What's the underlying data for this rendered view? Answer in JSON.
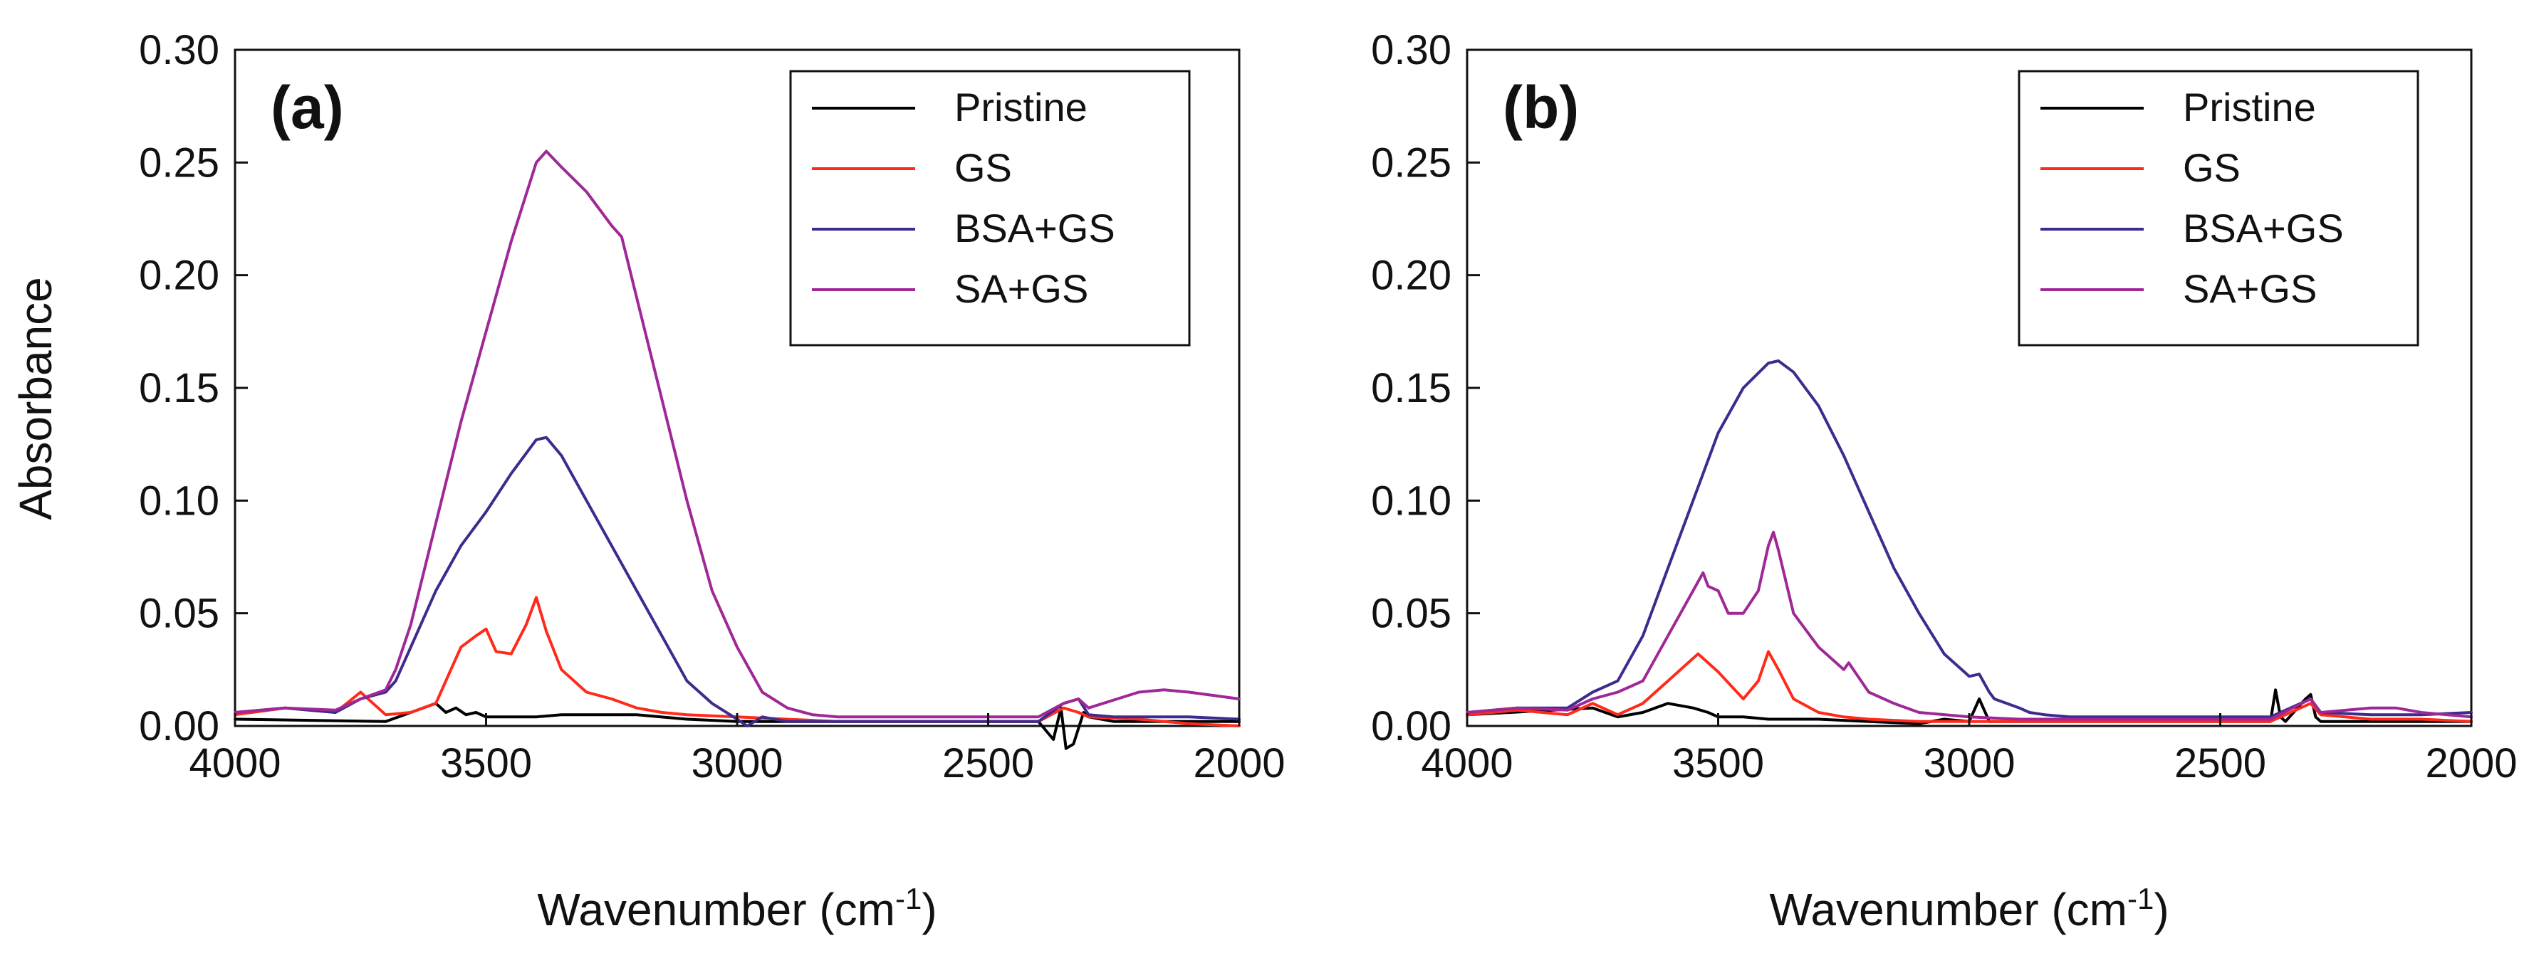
{
  "chart_data": [
    {
      "type": "line",
      "panel_label": "(a)",
      "xlabel": "Wavenumber (cm",
      "xlabel_sup": "-1",
      "xlabel_end": ")",
      "ylabel": "Absorbance",
      "xlim": [
        4000,
        2000
      ],
      "ylim": [
        0.0,
        0.3
      ],
      "xticks": [
        "4000",
        "3500",
        "3000",
        "2500",
        "2000"
      ],
      "yticks": [
        "0.00",
        "0.05",
        "0.10",
        "0.15",
        "0.20",
        "0.25",
        "0.30"
      ],
      "legend_position": "top-right",
      "series": [
        {
          "name": "Pristine",
          "color": "#000000",
          "x": [
            4000,
            3700,
            3650,
            3600,
            3580,
            3560,
            3540,
            3520,
            3500,
            3450,
            3400,
            3350,
            3300,
            3200,
            3100,
            3000,
            2900,
            2800,
            2600,
            2400,
            2370,
            2355,
            2345,
            2330,
            2310,
            2300,
            2250,
            2200,
            2100,
            2000
          ],
          "y": [
            0.003,
            0.002,
            0.006,
            0.01,
            0.006,
            0.008,
            0.005,
            0.006,
            0.004,
            0.004,
            0.004,
            0.005,
            0.005,
            0.005,
            0.003,
            0.002,
            0.002,
            0.002,
            0.002,
            0.002,
            -0.006,
            0.008,
            -0.01,
            -0.008,
            0.006,
            0.004,
            0.002,
            0.002,
            0.002,
            0.002
          ]
        },
        {
          "name": "GS",
          "color": "#ff2a1a",
          "x": [
            4000,
            3900,
            3800,
            3750,
            3700,
            3650,
            3600,
            3570,
            3550,
            3520,
            3500,
            3480,
            3450,
            3420,
            3400,
            3380,
            3350,
            3300,
            3250,
            3200,
            3150,
            3100,
            3000,
            2900,
            2800,
            2600,
            2400,
            2350,
            2320,
            2300,
            2200,
            2100,
            2000
          ],
          "y": [
            0.005,
            0.008,
            0.006,
            0.015,
            0.005,
            0.006,
            0.01,
            0.025,
            0.035,
            0.04,
            0.043,
            0.033,
            0.032,
            0.045,
            0.057,
            0.042,
            0.025,
            0.015,
            0.012,
            0.008,
            0.006,
            0.005,
            0.004,
            0.003,
            0.002,
            0.002,
            0.002,
            0.008,
            0.006,
            0.004,
            0.003,
            0.001,
            0.0
          ]
        },
        {
          "name": "BSA+GS",
          "color": "#3f2a8e",
          "x": [
            4000,
            3900,
            3800,
            3750,
            3700,
            3680,
            3650,
            3600,
            3550,
            3500,
            3450,
            3400,
            3380,
            3350,
            3300,
            3250,
            3200,
            3150,
            3100,
            3050,
            3000,
            2980,
            2950,
            2900,
            2800,
            2600,
            2400,
            2350,
            2320,
            2300,
            2250,
            2200,
            2100,
            2000
          ],
          "y": [
            0.006,
            0.008,
            0.006,
            0.012,
            0.015,
            0.02,
            0.035,
            0.06,
            0.08,
            0.095,
            0.112,
            0.127,
            0.128,
            0.12,
            0.1,
            0.08,
            0.06,
            0.04,
            0.02,
            0.01,
            0.003,
            0.0,
            0.004,
            0.002,
            0.002,
            0.002,
            0.002,
            0.01,
            0.012,
            0.005,
            0.004,
            0.004,
            0.004,
            0.003
          ]
        },
        {
          "name": "SA+GS",
          "color": "#a02896",
          "x": [
            4000,
            3900,
            3800,
            3750,
            3700,
            3680,
            3650,
            3600,
            3550,
            3500,
            3450,
            3400,
            3380,
            3350,
            3300,
            3250,
            3230,
            3200,
            3150,
            3100,
            3050,
            3000,
            2950,
            2900,
            2850,
            2800,
            2600,
            2400,
            2350,
            2320,
            2300,
            2200,
            2150,
            2100,
            2000
          ],
          "y": [
            0.006,
            0.008,
            0.007,
            0.012,
            0.016,
            0.025,
            0.045,
            0.09,
            0.135,
            0.175,
            0.215,
            0.25,
            0.255,
            0.248,
            0.237,
            0.222,
            0.217,
            0.19,
            0.145,
            0.1,
            0.06,
            0.035,
            0.015,
            0.008,
            0.005,
            0.004,
            0.004,
            0.004,
            0.01,
            0.012,
            0.008,
            0.015,
            0.016,
            0.015,
            0.012
          ]
        }
      ]
    },
    {
      "type": "line",
      "panel_label": "(b)",
      "xlabel": "Wavenumber (cm",
      "xlabel_sup": "-1",
      "xlabel_end": ")",
      "ylabel": "",
      "xlim": [
        4000,
        2000
      ],
      "ylim": [
        0.0,
        0.3
      ],
      "xticks": [
        "4000",
        "3500",
        "3000",
        "2500",
        "2000"
      ],
      "yticks": [
        "0.00",
        "0.05",
        "0.10",
        "0.15",
        "0.20",
        "0.25",
        "0.30"
      ],
      "legend_position": "top-right",
      "series": [
        {
          "name": "Pristine",
          "color": "#000000",
          "x": [
            4000,
            3750,
            3700,
            3650,
            3600,
            3550,
            3520,
            3500,
            3450,
            3400,
            3300,
            3200,
            3100,
            3050,
            3000,
            2980,
            2960,
            2900,
            2800,
            2600,
            2400,
            2390,
            2380,
            2370,
            2330,
            2320,
            2310,
            2300,
            2200,
            2100,
            2000
          ],
          "y": [
            0.005,
            0.008,
            0.004,
            0.006,
            0.01,
            0.008,
            0.006,
            0.004,
            0.004,
            0.003,
            0.003,
            0.002,
            0.001,
            0.003,
            0.002,
            0.012,
            0.002,
            0.002,
            0.002,
            0.002,
            0.002,
            0.016,
            0.004,
            0.002,
            0.012,
            0.014,
            0.004,
            0.002,
            0.002,
            0.002,
            0.002
          ]
        },
        {
          "name": "GS",
          "color": "#ff2a1a",
          "x": [
            4000,
            3900,
            3800,
            3750,
            3700,
            3650,
            3600,
            3560,
            3540,
            3520,
            3500,
            3450,
            3420,
            3400,
            3380,
            3350,
            3300,
            3250,
            3200,
            3100,
            3000,
            2900,
            2800,
            2600,
            2400,
            2320,
            2300,
            2200,
            2100,
            2000
          ],
          "y": [
            0.005,
            0.007,
            0.005,
            0.01,
            0.005,
            0.01,
            0.02,
            0.028,
            0.032,
            0.028,
            0.024,
            0.012,
            0.02,
            0.033,
            0.025,
            0.012,
            0.006,
            0.004,
            0.003,
            0.002,
            0.002,
            0.002,
            0.002,
            0.002,
            0.002,
            0.01,
            0.005,
            0.003,
            0.003,
            0.002
          ]
        },
        {
          "name": "BSA+GS",
          "color": "#3f2a8e",
          "x": [
            4000,
            3900,
            3800,
            3750,
            3700,
            3650,
            3600,
            3550,
            3500,
            3450,
            3400,
            3380,
            3350,
            3300,
            3250,
            3200,
            3150,
            3100,
            3050,
            3000,
            2980,
            2960,
            2950,
            2900,
            2880,
            2850,
            2800,
            2600,
            2400,
            2320,
            2300,
            2200,
            2100,
            2000
          ],
          "y": [
            0.006,
            0.008,
            0.008,
            0.015,
            0.02,
            0.04,
            0.07,
            0.1,
            0.13,
            0.15,
            0.161,
            0.162,
            0.157,
            0.142,
            0.12,
            0.095,
            0.07,
            0.05,
            0.032,
            0.022,
            0.023,
            0.015,
            0.012,
            0.008,
            0.006,
            0.005,
            0.004,
            0.004,
            0.004,
            0.012,
            0.006,
            0.005,
            0.005,
            0.006
          ]
        },
        {
          "name": "SA+GS",
          "color": "#a02896",
          "x": [
            4000,
            3900,
            3800,
            3750,
            3700,
            3650,
            3600,
            3550,
            3530,
            3520,
            3500,
            3480,
            3450,
            3420,
            3400,
            3390,
            3380,
            3350,
            3300,
            3250,
            3240,
            3200,
            3150,
            3100,
            3000,
            2900,
            2800,
            2600,
            2400,
            2320,
            2300,
            2200,
            2150,
            2100,
            2000
          ],
          "y": [
            0.006,
            0.008,
            0.007,
            0.012,
            0.015,
            0.02,
            0.04,
            0.06,
            0.068,
            0.062,
            0.06,
            0.05,
            0.05,
            0.06,
            0.08,
            0.086,
            0.078,
            0.05,
            0.035,
            0.025,
            0.028,
            0.015,
            0.01,
            0.006,
            0.004,
            0.003,
            0.003,
            0.003,
            0.003,
            0.012,
            0.006,
            0.008,
            0.008,
            0.006,
            0.004
          ]
        }
      ]
    }
  ]
}
